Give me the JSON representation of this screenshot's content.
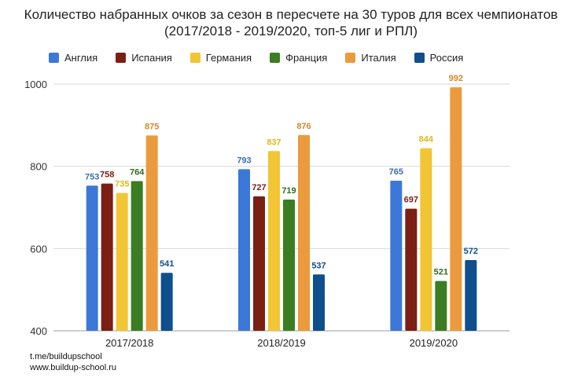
{
  "chart_data": {
    "type": "bar",
    "title": "Количество набранных очков за сезон в пересчете на 30 туров для всех чемпионатов (2017/2018 - 2019/2020, топ-5 лиг и РПЛ)",
    "categories": [
      "2017/2018",
      "2018/2019",
      "2019/2020"
    ],
    "series": [
      {
        "name": "Англия",
        "color": "#3b78d8",
        "label_color": "#3b6fb0",
        "values": [
          753,
          793,
          765
        ]
      },
      {
        "name": "Испания",
        "color": "#7b1f14",
        "label_color": "#7b1f14",
        "values": [
          758,
          727,
          697
        ]
      },
      {
        "name": "Германия",
        "color": "#f2c535",
        "label_color": "#e2b91a",
        "values": [
          735,
          837,
          844
        ]
      },
      {
        "name": "Франция",
        "color": "#3a7d22",
        "label_color": "#2f6d1c",
        "values": [
          764,
          719,
          521
        ]
      },
      {
        "name": "Италия",
        "color": "#ec9a3e",
        "label_color": "#d8862a",
        "values": [
          875,
          876,
          992
        ]
      },
      {
        "name": "Россия",
        "color": "#0f4f8c",
        "label_color": "#0f4f8c",
        "values": [
          541,
          537,
          572
        ]
      }
    ],
    "ylim": [
      400,
      1000
    ],
    "yticks": [
      400,
      600,
      800,
      1000
    ],
    "grid": true,
    "legend_position": "top"
  },
  "footer": {
    "line1": "t.me/buildupschool",
    "line2": "www.buildup-school.ru"
  }
}
